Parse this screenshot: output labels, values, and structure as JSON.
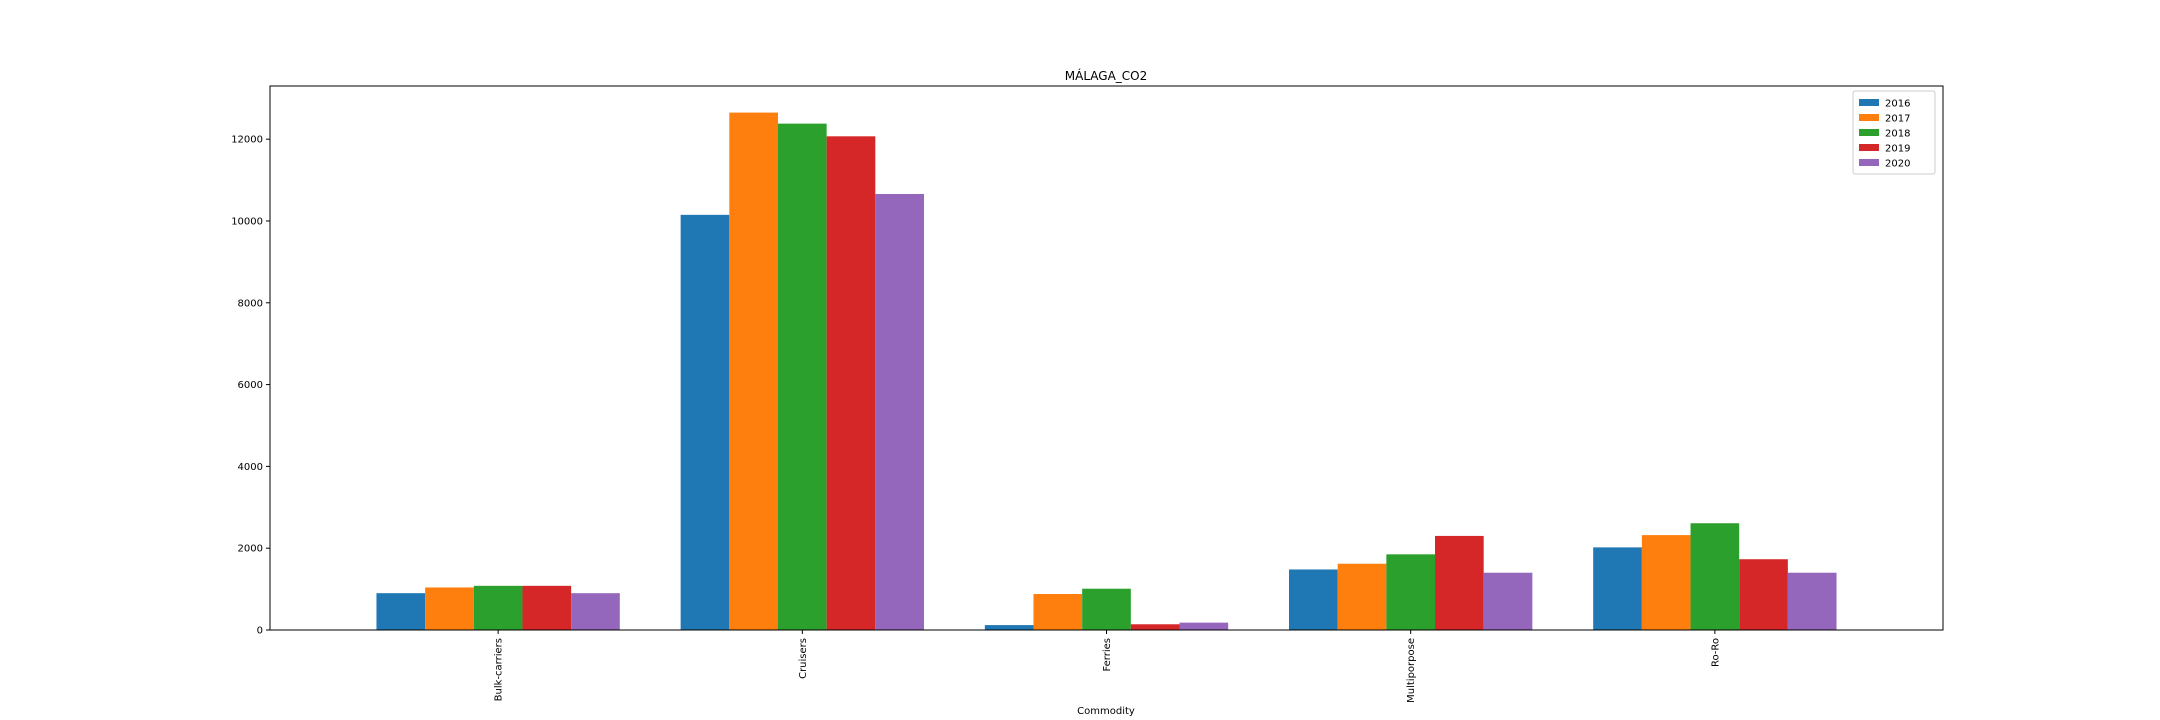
{
  "chart_data": {
    "type": "bar",
    "title": "MÁLAGA_CO2",
    "xlabel": "Commodity",
    "ylabel": "",
    "categories": [
      "Bulk-carriers",
      "Cruisers",
      "Ferries",
      "Multiporpose",
      "Ro-Ro"
    ],
    "series": [
      {
        "name": "2016",
        "color": "#1f77b4",
        "values": [
          900,
          10150,
          120,
          1480,
          2020
        ]
      },
      {
        "name": "2017",
        "color": "#ff7f0e",
        "values": [
          1040,
          12650,
          880,
          1620,
          2320
        ]
      },
      {
        "name": "2018",
        "color": "#2ca02c",
        "values": [
          1080,
          12380,
          1010,
          1850,
          2610
        ]
      },
      {
        "name": "2019",
        "color": "#d62728",
        "values": [
          1080,
          12070,
          140,
          2300,
          1730
        ]
      },
      {
        "name": "2020",
        "color": "#9467bd",
        "values": [
          900,
          10660,
          180,
          1400,
          1400
        ]
      }
    ],
    "ylim": [
      0,
      13300
    ],
    "yticks": [
      0,
      2000,
      4000,
      6000,
      8000,
      10000,
      12000
    ],
    "legend_position": "top-right",
    "grid": false,
    "x_tick_rotation": "vertical"
  }
}
